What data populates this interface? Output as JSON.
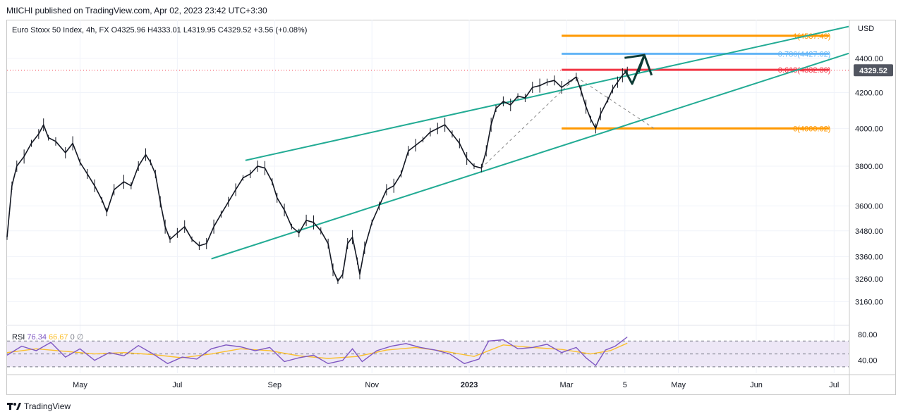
{
  "header": {
    "publisher_line": "MtICHI published on TradingView.com, Apr 02, 2023 23:42 UTC+3:30"
  },
  "footer": {
    "brand": "TradingView"
  },
  "colors": {
    "up": "#131722",
    "trendline": "#22ab94",
    "fib_orange": "#ff9800",
    "fib_blue": "#64b5f6",
    "fib_red": "#f23645",
    "rsi_line": "#7e57c2",
    "rsi_ma": "#fbc02d",
    "rsi_band": "#ede7f6",
    "price_badge": "#525661",
    "arrow": "#0d3b35"
  },
  "chart_data": [
    {
      "type": "line",
      "title": "Euro Stoxx 50 Index, 4h, FX",
      "ohlc": {
        "open_label": "O",
        "open": "4325.96",
        "high_label": "H",
        "high": "4333.01",
        "low_label": "L",
        "low": "4319.95",
        "close_label": "C",
        "close": "4329.52",
        "change": "+3.56 (+0.08%)"
      },
      "currency": "USD",
      "last_price": "4329.52",
      "y_scale": "log",
      "ylim": [
        3060,
        4620
      ],
      "y_ticks": [
        3160,
        3260,
        3360,
        3480,
        3600,
        3800,
        4000,
        4200,
        4400
      ],
      "y_tick_labels": [
        "3160.00",
        "3260.00",
        "3360.00",
        "3480.00",
        "3600.00",
        "3800.00",
        "4000.00",
        "4200.00",
        "4400.00"
      ],
      "x_ticks": [
        {
          "t": 1.5,
          "label": "May"
        },
        {
          "t": 3.5,
          "label": "Jul"
        },
        {
          "t": 5.5,
          "label": "Sep"
        },
        {
          "t": 7.5,
          "label": "Nov"
        },
        {
          "t": 9.5,
          "label": "2023"
        },
        {
          "t": 11.5,
          "label": "Mar"
        },
        {
          "t": 12.7,
          "label": "5"
        },
        {
          "t": 13.8,
          "label": "May"
        },
        {
          "t": 15.4,
          "label": "Jun"
        },
        {
          "t": 17.0,
          "label": "Jul"
        }
      ],
      "xlim": [
        0,
        17.3
      ],
      "series": [
        {
          "name": "Euro Stoxx 50",
          "points": [
            [
              0.0,
              3450
            ],
            [
              0.1,
              3700
            ],
            [
              0.2,
              3800
            ],
            [
              0.35,
              3850
            ],
            [
              0.5,
              3920
            ],
            [
              0.65,
              3970
            ],
            [
              0.75,
              4020
            ],
            [
              0.85,
              3950
            ],
            [
              1.0,
              3930
            ],
            [
              1.2,
              3870
            ],
            [
              1.35,
              3920
            ],
            [
              1.5,
              3820
            ],
            [
              1.65,
              3760
            ],
            [
              1.8,
              3700
            ],
            [
              1.95,
              3630
            ],
            [
              2.05,
              3570
            ],
            [
              2.2,
              3680
            ],
            [
              2.4,
              3720
            ],
            [
              2.55,
              3700
            ],
            [
              2.7,
              3800
            ],
            [
              2.85,
              3860
            ],
            [
              2.95,
              3820
            ],
            [
              3.05,
              3760
            ],
            [
              3.15,
              3620
            ],
            [
              3.25,
              3500
            ],
            [
              3.35,
              3440
            ],
            [
              3.5,
              3470
            ],
            [
              3.65,
              3500
            ],
            [
              3.8,
              3440
            ],
            [
              3.95,
              3410
            ],
            [
              4.1,
              3420
            ],
            [
              4.25,
              3500
            ],
            [
              4.4,
              3560
            ],
            [
              4.55,
              3620
            ],
            [
              4.7,
              3680
            ],
            [
              4.85,
              3740
            ],
            [
              5.0,
              3760
            ],
            [
              5.15,
              3800
            ],
            [
              5.3,
              3790
            ],
            [
              5.45,
              3720
            ],
            [
              5.55,
              3640
            ],
            [
              5.7,
              3580
            ],
            [
              5.85,
              3500
            ],
            [
              6.0,
              3470
            ],
            [
              6.15,
              3530
            ],
            [
              6.3,
              3520
            ],
            [
              6.45,
              3480
            ],
            [
              6.6,
              3420
            ],
            [
              6.7,
              3300
            ],
            [
              6.8,
              3250
            ],
            [
              6.9,
              3280
            ],
            [
              7.0,
              3420
            ],
            [
              7.1,
              3450
            ],
            [
              7.2,
              3340
            ],
            [
              7.25,
              3280
            ],
            [
              7.35,
              3400
            ],
            [
              7.5,
              3520
            ],
            [
              7.65,
              3600
            ],
            [
              7.8,
              3680
            ],
            [
              7.95,
              3700
            ],
            [
              8.1,
              3760
            ],
            [
              8.25,
              3880
            ],
            [
              8.4,
              3910
            ],
            [
              8.55,
              3940
            ],
            [
              8.7,
              3980
            ],
            [
              8.85,
              4000
            ],
            [
              9.0,
              4020
            ],
            [
              9.15,
              3970
            ],
            [
              9.3,
              3920
            ],
            [
              9.45,
              3840
            ],
            [
              9.6,
              3800
            ],
            [
              9.75,
              3790
            ],
            [
              9.85,
              3880
            ],
            [
              9.95,
              4020
            ],
            [
              10.05,
              4110
            ],
            [
              10.2,
              4150
            ],
            [
              10.35,
              4130
            ],
            [
              10.5,
              4180
            ],
            [
              10.65,
              4170
            ],
            [
              10.8,
              4230
            ],
            [
              10.95,
              4240
            ],
            [
              11.1,
              4260
            ],
            [
              11.25,
              4270
            ],
            [
              11.4,
              4230
            ],
            [
              11.55,
              4260
            ],
            [
              11.7,
              4290
            ],
            [
              11.8,
              4210
            ],
            [
              11.9,
              4120
            ],
            [
              12.0,
              4050
            ],
            [
              12.1,
              4000
            ],
            [
              12.2,
              4080
            ],
            [
              12.35,
              4160
            ],
            [
              12.45,
              4220
            ],
            [
              12.55,
              4260
            ],
            [
              12.65,
              4300
            ],
            [
              12.75,
              4329.52
            ]
          ]
        }
      ],
      "trendlines": [
        {
          "name": "upper-channel",
          "from": [
            4.9,
            3830
          ],
          "to": [
            17.4,
            4595
          ]
        },
        {
          "name": "lower-channel",
          "from": [
            4.2,
            3350
          ],
          "to": [
            17.4,
            4430
          ]
        }
      ],
      "fib_levels": [
        {
          "ratio": "1",
          "label": "1(4537.49)",
          "value": 4537.49,
          "color": "#ff9800"
        },
        {
          "ratio": "0.786",
          "label": "0.786(4427.62)",
          "value": 4427.62,
          "color": "#64b5f6"
        },
        {
          "ratio": "0.618",
          "label": "0.618(4332.30)",
          "value": 4332.3,
          "color": "#f23645"
        },
        {
          "ratio": "0",
          "label": "0(4000.02)",
          "value": 4000.02,
          "color": "#ff9800"
        }
      ],
      "fib_range_x": [
        11.4,
        16.9
      ],
      "projection_arrow": [
        [
          12.7,
          4329.52
        ],
        [
          12.85,
          4250
        ],
        [
          13.1,
          4420
        ],
        [
          13.25,
          4300
        ]
      ]
    },
    {
      "type": "line",
      "title": "RSI",
      "label": "RSI",
      "rsi_value": "76.34",
      "ma_value": "66.67",
      "extra1": "0",
      "extra2": "∅",
      "ylim": [
        20,
        90
      ],
      "y_ticks": [
        40,
        80
      ],
      "y_tick_labels": [
        "40.00",
        "80.00"
      ],
      "bands": [
        30,
        50,
        70
      ],
      "series": [
        {
          "name": "RSI",
          "points": [
            [
              0.0,
              48
            ],
            [
              0.3,
              62
            ],
            [
              0.6,
              55
            ],
            [
              0.9,
              68
            ],
            [
              1.2,
              45
            ],
            [
              1.5,
              58
            ],
            [
              1.8,
              40
            ],
            [
              2.1,
              52
            ],
            [
              2.4,
              47
            ],
            [
              2.7,
              63
            ],
            [
              3.0,
              50
            ],
            [
              3.3,
              35
            ],
            [
              3.6,
              45
            ],
            [
              3.9,
              42
            ],
            [
              4.2,
              58
            ],
            [
              4.5,
              64
            ],
            [
              4.8,
              61
            ],
            [
              5.1,
              55
            ],
            [
              5.4,
              60
            ],
            [
              5.7,
              38
            ],
            [
              6.0,
              44
            ],
            [
              6.3,
              48
            ],
            [
              6.6,
              35
            ],
            [
              6.9,
              40
            ],
            [
              7.1,
              58
            ],
            [
              7.3,
              38
            ],
            [
              7.6,
              55
            ],
            [
              7.9,
              62
            ],
            [
              8.2,
              66
            ],
            [
              8.5,
              60
            ],
            [
              8.8,
              56
            ],
            [
              9.1,
              50
            ],
            [
              9.4,
              35
            ],
            [
              9.7,
              42
            ],
            [
              9.9,
              70
            ],
            [
              10.2,
              72
            ],
            [
              10.5,
              58
            ],
            [
              10.8,
              60
            ],
            [
              11.1,
              65
            ],
            [
              11.4,
              52
            ],
            [
              11.7,
              60
            ],
            [
              11.9,
              44
            ],
            [
              12.1,
              32
            ],
            [
              12.3,
              56
            ],
            [
              12.5,
              62
            ],
            [
              12.75,
              76.34
            ]
          ]
        },
        {
          "name": "RSI-based MA",
          "points": [
            [
              0.0,
              52
            ],
            [
              0.6,
              58
            ],
            [
              1.2,
              54
            ],
            [
              1.8,
              50
            ],
            [
              2.4,
              52
            ],
            [
              3.0,
              49
            ],
            [
              3.6,
              44
            ],
            [
              4.2,
              50
            ],
            [
              4.8,
              58
            ],
            [
              5.4,
              55
            ],
            [
              6.0,
              47
            ],
            [
              6.6,
              43
            ],
            [
              7.2,
              46
            ],
            [
              7.8,
              56
            ],
            [
              8.4,
              60
            ],
            [
              9.0,
              54
            ],
            [
              9.6,
              46
            ],
            [
              10.2,
              64
            ],
            [
              10.8,
              60
            ],
            [
              11.4,
              57
            ],
            [
              12.0,
              50
            ],
            [
              12.4,
              55
            ],
            [
              12.75,
              66.67
            ]
          ]
        }
      ]
    }
  ]
}
